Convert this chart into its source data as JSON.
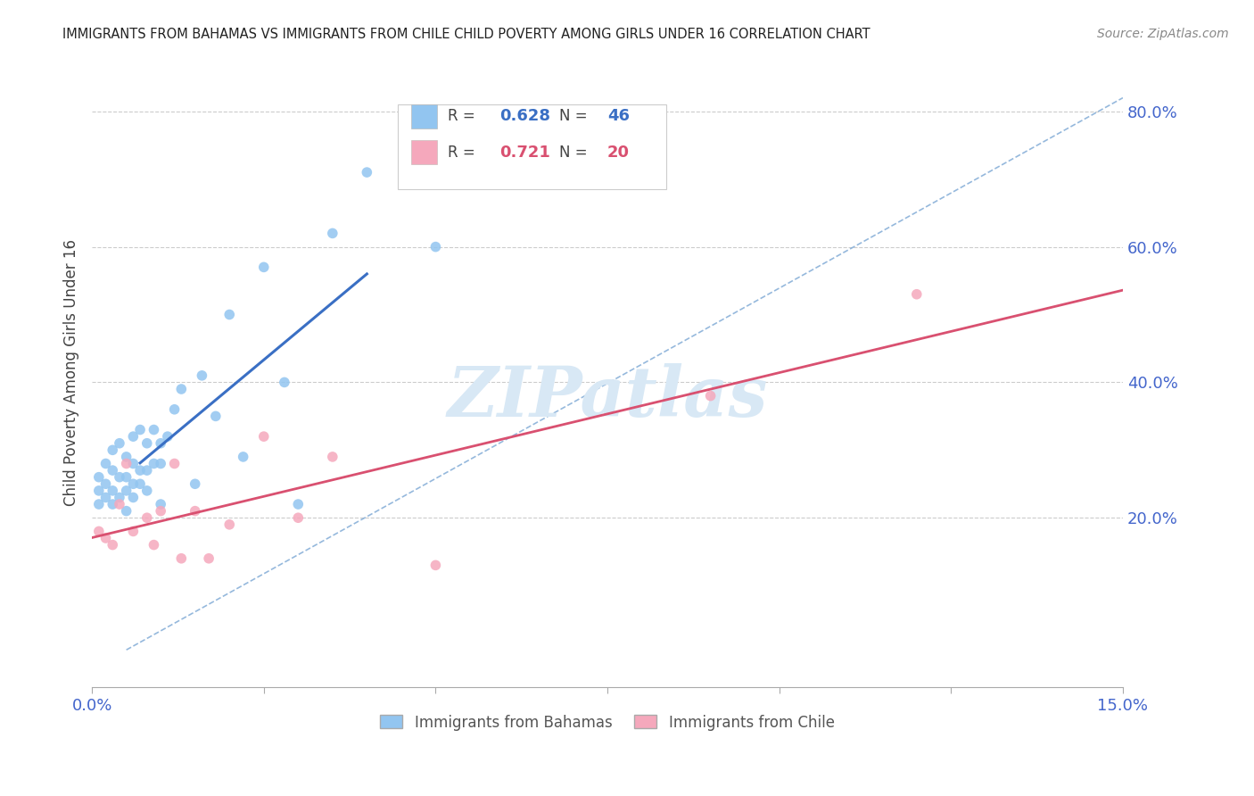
{
  "title": "IMMIGRANTS FROM BAHAMAS VS IMMIGRANTS FROM CHILE CHILD POVERTY AMONG GIRLS UNDER 16 CORRELATION CHART",
  "source": "Source: ZipAtlas.com",
  "ylabel": "Child Poverty Among Girls Under 16",
  "xlim": [
    0,
    0.15
  ],
  "ylim": [
    -0.05,
    0.88
  ],
  "xtick_positions": [
    0.0,
    0.025,
    0.05,
    0.075,
    0.1,
    0.125,
    0.15
  ],
  "xtick_labels": [
    "0.0%",
    "",
    "",
    "",
    "",
    "",
    "15.0%"
  ],
  "yticks_right": [
    0.2,
    0.4,
    0.6,
    0.8
  ],
  "ytick_labels_right": [
    "20.0%",
    "40.0%",
    "60.0%",
    "80.0%"
  ],
  "legend_R_bahamas": "0.628",
  "legend_N_bahamas": "46",
  "legend_R_chile": "0.721",
  "legend_N_chile": "20",
  "color_bahamas": "#92C5F0",
  "color_chile": "#F5A8BC",
  "color_regression_bahamas": "#3A6FC4",
  "color_regression_chile": "#D95070",
  "color_ref_line": "#7BA7D4",
  "color_title": "#222222",
  "color_source": "#888888",
  "color_axis_blue": "#4466CC",
  "color_ylabel": "#444444",
  "background_color": "#FFFFFF",
  "watermark_text": "ZIPatlas",
  "watermark_color": "#D8E8F5",
  "bahamas_x": [
    0.001,
    0.001,
    0.001,
    0.002,
    0.002,
    0.002,
    0.003,
    0.003,
    0.003,
    0.003,
    0.004,
    0.004,
    0.004,
    0.005,
    0.005,
    0.005,
    0.005,
    0.006,
    0.006,
    0.006,
    0.006,
    0.007,
    0.007,
    0.007,
    0.008,
    0.008,
    0.008,
    0.009,
    0.009,
    0.01,
    0.01,
    0.01,
    0.011,
    0.012,
    0.013,
    0.015,
    0.016,
    0.018,
    0.02,
    0.022,
    0.025,
    0.028,
    0.03,
    0.035,
    0.04,
    0.05
  ],
  "bahamas_y": [
    0.24,
    0.22,
    0.26,
    0.28,
    0.25,
    0.23,
    0.3,
    0.27,
    0.24,
    0.22,
    0.31,
    0.26,
    0.23,
    0.29,
    0.26,
    0.24,
    0.21,
    0.32,
    0.28,
    0.25,
    0.23,
    0.33,
    0.27,
    0.25,
    0.31,
    0.27,
    0.24,
    0.33,
    0.28,
    0.31,
    0.28,
    0.22,
    0.32,
    0.36,
    0.39,
    0.25,
    0.41,
    0.35,
    0.5,
    0.29,
    0.57,
    0.4,
    0.22,
    0.62,
    0.71,
    0.6
  ],
  "chile_x": [
    0.001,
    0.002,
    0.003,
    0.004,
    0.005,
    0.006,
    0.008,
    0.009,
    0.01,
    0.012,
    0.013,
    0.015,
    0.017,
    0.02,
    0.025,
    0.03,
    0.035,
    0.05,
    0.09,
    0.12
  ],
  "chile_y": [
    0.18,
    0.17,
    0.16,
    0.22,
    0.28,
    0.18,
    0.2,
    0.16,
    0.21,
    0.28,
    0.14,
    0.21,
    0.14,
    0.19,
    0.32,
    0.2,
    0.29,
    0.13,
    0.38,
    0.53
  ],
  "ref_line_x": [
    0.005,
    0.15
  ],
  "ref_line_y": [
    0.005,
    0.82
  ]
}
